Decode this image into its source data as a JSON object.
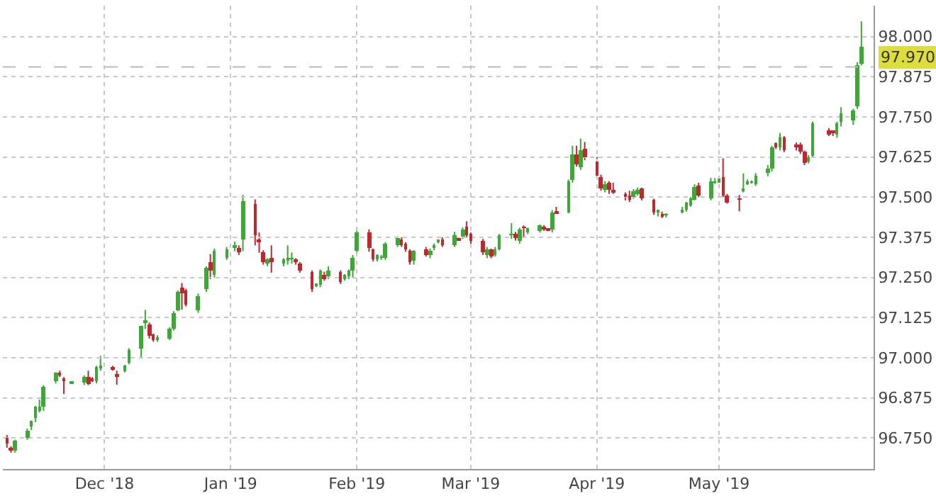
{
  "chart_data": {
    "type": "candlestick",
    "x": [
      "2018-11-07",
      "2018-11-08",
      "2018-11-09",
      "2018-11-12",
      "2018-11-13",
      "2018-11-14",
      "2018-11-15",
      "2018-11-16",
      "2018-11-19",
      "2018-11-20",
      "2018-11-21",
      "2018-11-23",
      "2018-11-26",
      "2018-11-27",
      "2018-11-28",
      "2018-11-29",
      "2018-11-30",
      "2018-12-03",
      "2018-12-04",
      "2018-12-06",
      "2018-12-07",
      "2018-12-10",
      "2018-12-11",
      "2018-12-12",
      "2018-12-13",
      "2018-12-14",
      "2018-12-17",
      "2018-12-18",
      "2018-12-19",
      "2018-12-20",
      "2018-12-21",
      "2018-12-24",
      "2018-12-26",
      "2018-12-27",
      "2018-12-28",
      "2018-12-31",
      "2019-01-02",
      "2019-01-03",
      "2019-01-04",
      "2019-01-07",
      "2019-01-08",
      "2019-01-09",
      "2019-01-10",
      "2019-01-11",
      "2019-01-14",
      "2019-01-15",
      "2019-01-16",
      "2019-01-17",
      "2019-01-18",
      "2019-01-21",
      "2019-01-22",
      "2019-01-23",
      "2019-01-24",
      "2019-01-25",
      "2019-01-28",
      "2019-01-29",
      "2019-01-30",
      "2019-01-31",
      "2019-02-01",
      "2019-02-04",
      "2019-02-05",
      "2019-02-06",
      "2019-02-07",
      "2019-02-08",
      "2019-02-11",
      "2019-02-12",
      "2019-02-13",
      "2019-02-14",
      "2019-02-15",
      "2019-02-18",
      "2019-02-19",
      "2019-02-20",
      "2019-02-21",
      "2019-02-22",
      "2019-02-25",
      "2019-02-26",
      "2019-02-27",
      "2019-02-28",
      "2019-03-01",
      "2019-03-04",
      "2019-03-05",
      "2019-03-06",
      "2019-03-07",
      "2019-03-08",
      "2019-03-11",
      "2019-03-12",
      "2019-03-13",
      "2019-03-14",
      "2019-03-15",
      "2019-03-18",
      "2019-03-19",
      "2019-03-20",
      "2019-03-21",
      "2019-03-22",
      "2019-03-25",
      "2019-03-26",
      "2019-03-27",
      "2019-03-28",
      "2019-03-29",
      "2019-04-01",
      "2019-04-02",
      "2019-04-03",
      "2019-04-04",
      "2019-04-05",
      "2019-04-08",
      "2019-04-09",
      "2019-04-10",
      "2019-04-11",
      "2019-04-12",
      "2019-04-15",
      "2019-04-16",
      "2019-04-17",
      "2019-04-18",
      "2019-04-22",
      "2019-04-23",
      "2019-04-24",
      "2019-04-25",
      "2019-04-26",
      "2019-04-29",
      "2019-04-30",
      "2019-05-01",
      "2019-05-02",
      "2019-05-03",
      "2019-05-06",
      "2019-05-07",
      "2019-05-08",
      "2019-05-09",
      "2019-05-10",
      "2019-05-13",
      "2019-05-14",
      "2019-05-15",
      "2019-05-16",
      "2019-05-17",
      "2019-05-20",
      "2019-05-21",
      "2019-05-22",
      "2019-05-23",
      "2019-05-24",
      "2019-05-28",
      "2019-05-29",
      "2019-05-30",
      "2019-05-31",
      "2019-06-03",
      "2019-06-04",
      "2019-06-05"
    ],
    "ohlc": [
      [
        96.75,
        96.76,
        96.72,
        96.735
      ],
      [
        96.72,
        96.725,
        96.705,
        96.715
      ],
      [
        96.712,
        96.745,
        96.705,
        96.744
      ],
      [
        96.753,
        96.78,
        96.745,
        96.773
      ],
      [
        96.785,
        96.805,
        96.775,
        96.802
      ],
      [
        96.811,
        96.85,
        96.8,
        96.846
      ],
      [
        96.836,
        96.87,
        96.83,
        96.85
      ],
      [
        96.85,
        96.915,
        96.835,
        96.909
      ],
      [
        96.928,
        96.955,
        96.92,
        96.952
      ],
      [
        96.955,
        96.96,
        96.94,
        96.945
      ],
      [
        96.933,
        96.94,
        96.887,
        96.929
      ],
      [
        96.922,
        96.928,
        96.918,
        96.925
      ],
      [
        96.922,
        96.945,
        96.915,
        96.941
      ],
      [
        96.941,
        96.96,
        96.915,
        96.919
      ],
      [
        96.933,
        96.94,
        96.925,
        96.929
      ],
      [
        96.928,
        96.975,
        96.92,
        96.971
      ],
      [
        96.97,
        97.006,
        96.96,
        96.972
      ],
      [
        96.968,
        96.975,
        96.96,
        96.966
      ],
      [
        96.948,
        96.96,
        96.916,
        96.942
      ],
      [
        96.96,
        96.978,
        96.955,
        96.974
      ],
      [
        96.986,
        97.03,
        96.98,
        97.025
      ],
      [
        97.03,
        97.1,
        97.0,
        97.098
      ],
      [
        97.11,
        97.149,
        97.09,
        97.115
      ],
      [
        97.105,
        97.11,
        97.06,
        97.069
      ],
      [
        97.073,
        97.075,
        97.05,
        97.054
      ],
      [
        97.058,
        97.07,
        97.05,
        97.065
      ],
      [
        97.059,
        97.095,
        97.055,
        97.091
      ],
      [
        97.091,
        97.145,
        97.085,
        97.138
      ],
      [
        97.15,
        97.21,
        97.145,
        97.204
      ],
      [
        97.219,
        97.233,
        97.15,
        97.201
      ],
      [
        97.209,
        97.215,
        97.16,
        97.165
      ],
      [
        97.147,
        97.2,
        97.14,
        97.194
      ],
      [
        97.212,
        97.285,
        97.205,
        97.279
      ],
      [
        97.296,
        97.323,
        97.245,
        97.27
      ],
      [
        97.26,
        97.34,
        97.25,
        97.332
      ],
      [
        97.311,
        97.345,
        97.305,
        97.337
      ],
      [
        97.346,
        97.362,
        97.332,
        97.348
      ],
      [
        97.344,
        97.35,
        97.32,
        97.328
      ],
      [
        97.369,
        97.507,
        97.332,
        97.488
      ],
      [
        97.478,
        97.493,
        97.35,
        97.383
      ],
      [
        97.365,
        97.39,
        97.327,
        97.36
      ],
      [
        97.328,
        97.335,
        97.29,
        97.296
      ],
      [
        97.292,
        97.31,
        97.285,
        97.306
      ],
      [
        97.313,
        97.35,
        97.265,
        97.3
      ],
      [
        97.292,
        97.31,
        97.285,
        97.306
      ],
      [
        97.306,
        97.35,
        97.29,
        97.307
      ],
      [
        97.31,
        97.328,
        97.293,
        97.311
      ],
      [
        97.306,
        97.31,
        97.29,
        97.296
      ],
      [
        97.293,
        97.298,
        97.265,
        97.27
      ],
      [
        97.267,
        97.272,
        97.205,
        97.216
      ],
      [
        97.224,
        97.232,
        97.22,
        97.228
      ],
      [
        97.226,
        97.275,
        97.22,
        97.27
      ],
      [
        97.26,
        97.268,
        97.24,
        97.245
      ],
      [
        97.252,
        97.285,
        97.245,
        97.27
      ],
      [
        97.267,
        97.272,
        97.23,
        97.238
      ],
      [
        97.245,
        97.26,
        97.24,
        97.26
      ],
      [
        97.255,
        97.275,
        97.245,
        97.27
      ],
      [
        97.27,
        97.32,
        97.25,
        97.311
      ],
      [
        97.332,
        97.405,
        97.325,
        97.391
      ],
      [
        97.391,
        97.4,
        97.33,
        97.34
      ],
      [
        97.337,
        97.34,
        97.3,
        97.308
      ],
      [
        97.308,
        97.322,
        97.3,
        97.318
      ],
      [
        97.312,
        97.32,
        97.305,
        97.313
      ],
      [
        97.311,
        97.36,
        97.305,
        97.354
      ],
      [
        97.351,
        97.378,
        97.345,
        97.373
      ],
      [
        97.369,
        97.375,
        97.345,
        97.351
      ],
      [
        97.354,
        97.36,
        97.33,
        97.337
      ],
      [
        97.332,
        97.338,
        97.29,
        97.299
      ],
      [
        97.303,
        97.335,
        97.29,
        97.332
      ],
      [
        97.337,
        97.345,
        97.315,
        97.322
      ],
      [
        97.318,
        97.34,
        97.31,
        97.332
      ],
      [
        97.34,
        97.356,
        97.335,
        97.351
      ],
      [
        97.36,
        97.368,
        97.356,
        97.364
      ],
      [
        97.369,
        97.375,
        97.345,
        97.351
      ],
      [
        97.351,
        97.392,
        97.345,
        97.381
      ],
      [
        97.37,
        97.374,
        97.364,
        97.368
      ],
      [
        97.376,
        97.406,
        97.37,
        97.4
      ],
      [
        97.406,
        97.425,
        97.375,
        97.381
      ],
      [
        97.384,
        97.39,
        97.355,
        97.362
      ],
      [
        97.365,
        97.37,
        97.32,
        97.328
      ],
      [
        97.322,
        97.345,
        97.31,
        97.339
      ],
      [
        97.336,
        97.34,
        97.31,
        97.317
      ],
      [
        97.322,
        97.345,
        97.315,
        97.339
      ],
      [
        97.339,
        97.385,
        97.335,
        97.38
      ],
      [
        97.382,
        97.419,
        97.37,
        97.384
      ],
      [
        97.386,
        97.392,
        97.365,
        97.371
      ],
      [
        97.365,
        97.405,
        97.355,
        97.4
      ],
      [
        97.408,
        97.412,
        97.377,
        97.407
      ],
      [
        97.39,
        97.405,
        97.385,
        97.402
      ],
      [
        97.394,
        97.415,
        97.39,
        97.412
      ],
      [
        97.409,
        97.413,
        97.395,
        97.4
      ],
      [
        97.4,
        97.403,
        97.394,
        97.397
      ],
      [
        97.4,
        97.46,
        97.39,
        97.453
      ],
      [
        97.453,
        97.47,
        97.448,
        97.451
      ],
      [
        97.453,
        97.555,
        97.45,
        97.55
      ],
      [
        97.555,
        97.66,
        97.545,
        97.633
      ],
      [
        97.633,
        97.66,
        97.595,
        97.601
      ],
      [
        97.594,
        97.682,
        97.585,
        97.645
      ],
      [
        97.652,
        97.672,
        97.615,
        97.623
      ],
      [
        97.609,
        97.625,
        97.56,
        97.569
      ],
      [
        97.561,
        97.57,
        97.52,
        97.526
      ],
      [
        97.521,
        97.55,
        97.515,
        97.539
      ],
      [
        97.546,
        97.55,
        97.51,
        97.521
      ],
      [
        97.521,
        97.545,
        97.51,
        97.517
      ],
      [
        97.511,
        97.515,
        97.49,
        97.502
      ],
      [
        97.507,
        97.52,
        97.485,
        97.492
      ],
      [
        97.499,
        97.525,
        97.495,
        97.517
      ],
      [
        97.511,
        97.53,
        97.505,
        97.524
      ],
      [
        97.526,
        97.53,
        97.49,
        97.496
      ],
      [
        97.492,
        97.495,
        97.445,
        97.453
      ],
      [
        97.454,
        97.46,
        97.44,
        97.458
      ],
      [
        97.449,
        97.455,
        97.435,
        97.438
      ],
      [
        97.444,
        97.45,
        97.437,
        97.445
      ],
      [
        97.453,
        97.47,
        97.45,
        97.463
      ],
      [
        97.459,
        97.485,
        97.455,
        97.481
      ],
      [
        97.474,
        97.5,
        97.47,
        97.497
      ],
      [
        97.493,
        97.54,
        97.49,
        97.532
      ],
      [
        97.537,
        97.545,
        97.5,
        97.507
      ],
      [
        97.497,
        97.56,
        97.49,
        97.549
      ],
      [
        97.548,
        97.559,
        97.541,
        97.549
      ],
      [
        97.547,
        97.565,
        97.545,
        97.559
      ],
      [
        97.562,
        97.621,
        97.5,
        97.507
      ],
      [
        97.507,
        97.51,
        97.48,
        97.485
      ],
      [
        97.494,
        97.507,
        97.456,
        97.493
      ],
      [
        97.522,
        97.574,
        97.515,
        97.529
      ],
      [
        97.544,
        97.555,
        97.538,
        97.551
      ],
      [
        97.547,
        97.552,
        97.542,
        97.548
      ],
      [
        97.541,
        97.575,
        97.535,
        97.566
      ],
      [
        97.574,
        97.6,
        97.565,
        97.591
      ],
      [
        97.588,
        97.66,
        97.58,
        97.654
      ],
      [
        97.665,
        97.67,
        97.65,
        97.657
      ],
      [
        97.654,
        97.7,
        97.645,
        97.684
      ],
      [
        97.684,
        97.69,
        97.64,
        97.647
      ],
      [
        97.665,
        97.67,
        97.645,
        97.654
      ],
      [
        97.665,
        97.67,
        97.635,
        97.64
      ],
      [
        97.64,
        97.645,
        97.6,
        97.606
      ],
      [
        97.61,
        97.63,
        97.605,
        97.625
      ],
      [
        97.629,
        97.735,
        97.625,
        97.728
      ],
      [
        97.709,
        97.715,
        97.69,
        97.694
      ],
      [
        97.704,
        97.708,
        97.69,
        97.703
      ],
      [
        97.694,
        97.735,
        97.685,
        97.728
      ],
      [
        97.735,
        97.78,
        97.72,
        97.76
      ],
      [
        97.738,
        97.775,
        97.725,
        97.768
      ],
      [
        97.782,
        97.92,
        97.775,
        97.912
      ],
      [
        97.915,
        98.047,
        97.91,
        97.97
      ]
    ],
    "colors": [
      "#c1272d",
      "#c1272d",
      "#3aa935",
      "#3aa935",
      "#3aa935",
      "#3aa935",
      "#3aa935",
      "#3aa935",
      "#3aa935",
      "#c1272d",
      "#c1272d",
      "#3aa935",
      "#3aa935",
      "#c1272d",
      "#c1272d",
      "#3aa935",
      "#3aa935",
      "#c1272d",
      "#c1272d",
      "#3aa935",
      "#3aa935",
      "#3aa935",
      "#3aa935",
      "#c1272d",
      "#c1272d",
      "#3aa935",
      "#3aa935",
      "#3aa935",
      "#3aa935",
      "#c1272d",
      "#c1272d",
      "#3aa935",
      "#3aa935",
      "#c1272d",
      "#3aa935",
      "#3aa935",
      "#3aa935",
      "#c1272d",
      "#3aa935",
      "#c1272d",
      "#c1272d",
      "#c1272d",
      "#3aa935",
      "#c1272d",
      "#3aa935",
      "#3aa935",
      "#3aa935",
      "#c1272d",
      "#c1272d",
      "#c1272d",
      "#3aa935",
      "#3aa935",
      "#c1272d",
      "#3aa935",
      "#c1272d",
      "#3aa935",
      "#3aa935",
      "#3aa935",
      "#3aa935",
      "#c1272d",
      "#c1272d",
      "#3aa935",
      "#3aa935",
      "#3aa935",
      "#3aa935",
      "#c1272d",
      "#c1272d",
      "#c1272d",
      "#3aa935",
      "#c1272d",
      "#3aa935",
      "#3aa935",
      "#3aa935",
      "#c1272d",
      "#3aa935",
      "#c1272d",
      "#3aa935",
      "#c1272d",
      "#c1272d",
      "#c1272d",
      "#3aa935",
      "#c1272d",
      "#3aa935",
      "#3aa935",
      "#3aa935",
      "#c1272d",
      "#3aa935",
      "#c1272d",
      "#3aa935",
      "#3aa935",
      "#c1272d",
      "#c1272d",
      "#3aa935",
      "#c1272d",
      "#3aa935",
      "#3aa935",
      "#c1272d",
      "#3aa935",
      "#c1272d",
      "#c1272d",
      "#c1272d",
      "#3aa935",
      "#c1272d",
      "#c1272d",
      "#c1272d",
      "#c1272d",
      "#3aa935",
      "#3aa935",
      "#c1272d",
      "#c1272d",
      "#3aa935",
      "#c1272d",
      "#3aa935",
      "#3aa935",
      "#3aa935",
      "#3aa935",
      "#3aa935",
      "#c1272d",
      "#3aa935",
      "#3aa935",
      "#3aa935",
      "#c1272d",
      "#c1272d",
      "#c1272d",
      "#3aa935",
      "#3aa935",
      "#3aa935",
      "#3aa935",
      "#3aa935",
      "#3aa935",
      "#c1272d",
      "#3aa935",
      "#c1272d",
      "#c1272d",
      "#c1272d",
      "#c1272d",
      "#3aa935",
      "#3aa935",
      "#c1272d",
      "#c1272d",
      "#3aa935",
      "#3aa935",
      "#3aa935",
      "#3aa935",
      "#3aa935"
    ],
    "xlim": [
      "2018-11-06",
      "2019-06-08"
    ],
    "xticks": [
      {
        "value": "2018-12-01",
        "label": "Dec '18"
      },
      {
        "value": "2019-01-01",
        "label": "Jan '19"
      },
      {
        "value": "2019-02-01",
        "label": "Feb '19"
      },
      {
        "value": "2019-03-01",
        "label": "Mar '19"
      },
      {
        "value": "2019-04-01",
        "label": "Apr '19"
      },
      {
        "value": "2019-05-01",
        "label": "May '19"
      }
    ],
    "ylim": [
      96.654,
      98.096
    ],
    "yticks": [
      {
        "value": 96.75,
        "label": "96.750"
      },
      {
        "value": 96.875,
        "label": "96.875"
      },
      {
        "value": 97.0,
        "label": "97.000"
      },
      {
        "value": 97.125,
        "label": "97.125"
      },
      {
        "value": 97.25,
        "label": "97.250"
      },
      {
        "value": 97.375,
        "label": "97.375"
      },
      {
        "value": 97.5,
        "label": "97.500"
      },
      {
        "value": 97.625,
        "label": "97.625"
      },
      {
        "value": 97.75,
        "label": "97.750"
      },
      {
        "value": 97.875,
        "label": "97.875"
      },
      {
        "value": 98.0,
        "label": "98.000"
      }
    ],
    "ref_lines": [
      {
        "axis": "y",
        "value": 97.905,
        "color": "#bbbbbb",
        "line_style": "dashed"
      }
    ],
    "annotations": [
      "97.970"
    ],
    "grid": true
  }
}
